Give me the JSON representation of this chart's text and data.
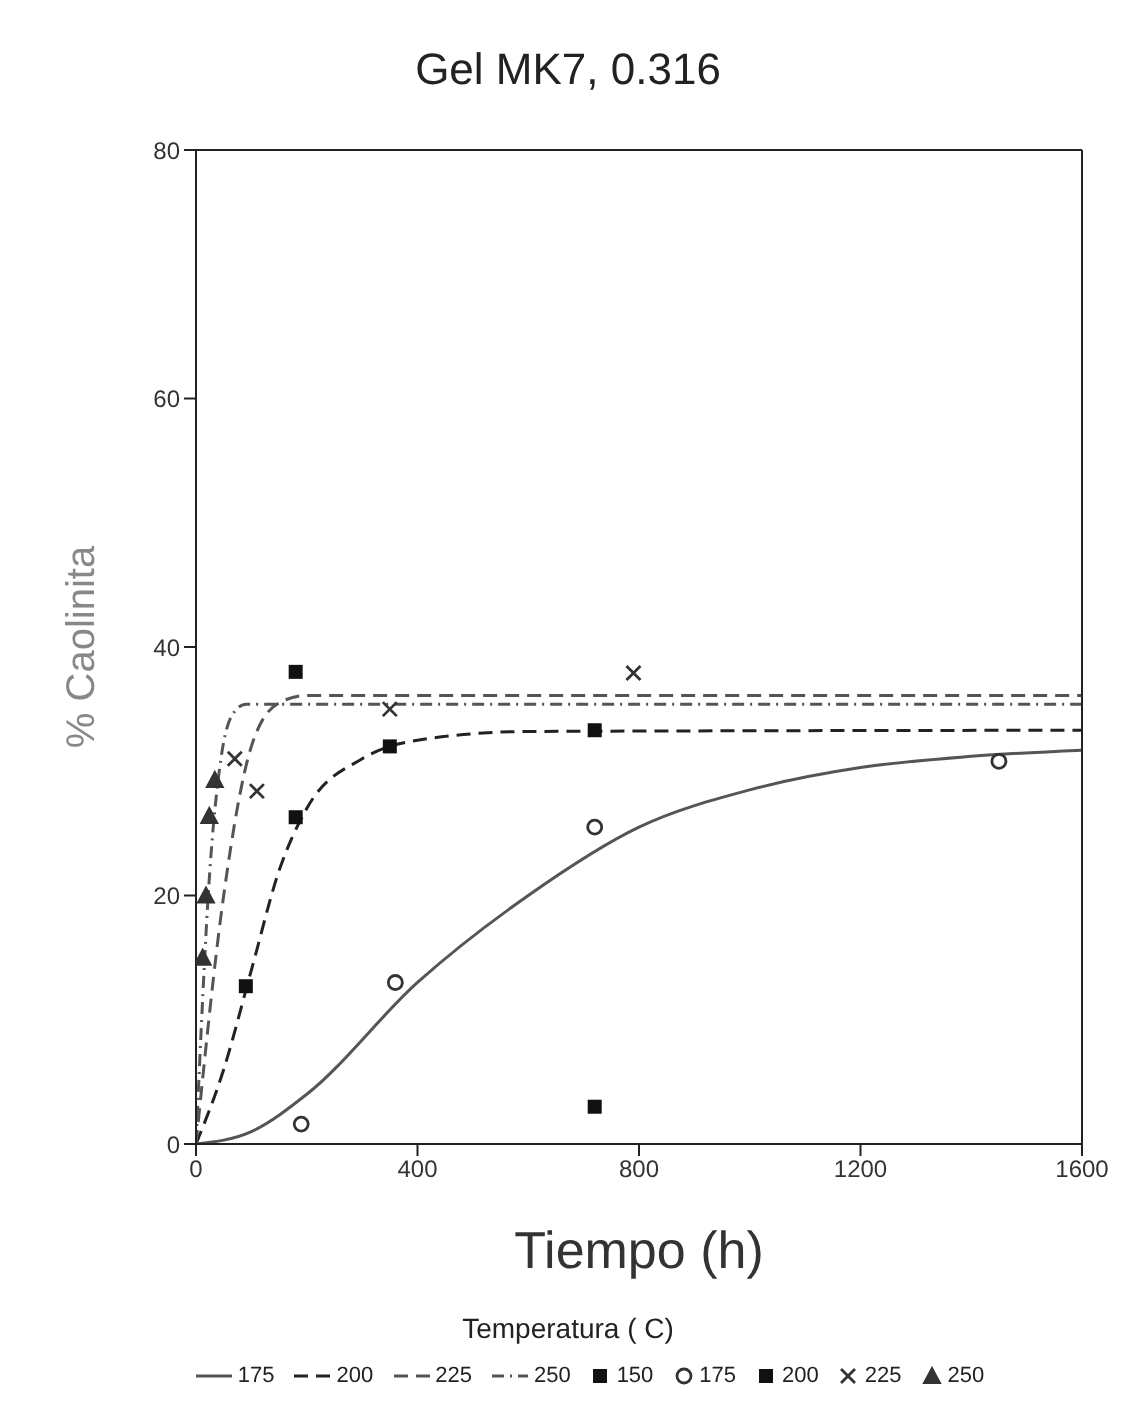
{
  "chart_data": {
    "type": "scatter",
    "title": "Gel MK7, 0.316",
    "xlabel": "Tiempo (h)",
    "ylabel": "% Caolinita",
    "legend_title": "Temperatura ( C)",
    "xlim": [
      0,
      1600
    ],
    "xticks": [
      0,
      400,
      800,
      1200,
      1600
    ],
    "ylim": [
      0,
      80
    ],
    "yticks": [
      0,
      20,
      40,
      60,
      80
    ],
    "grid": false,
    "legend": "bottom",
    "series": [
      {
        "name": "175",
        "type": "line",
        "line_style": "solid",
        "color": "#555555",
        "x": [
          0,
          100,
          200,
          400,
          600,
          800,
          1000,
          1200,
          1400,
          1600
        ],
        "values": [
          0,
          1,
          4,
          13,
          20,
          25.5,
          28.5,
          30.3,
          31.2,
          31.7
        ]
      },
      {
        "name": "200",
        "type": "line",
        "line_style": "dashed",
        "color": "#222222",
        "x": [
          0,
          50,
          100,
          150,
          200,
          300,
          400,
          600,
          1600
        ],
        "values": [
          0,
          6,
          14,
          22,
          27,
          31,
          32.5,
          33.2,
          33.3
        ]
      },
      {
        "name": "225",
        "type": "line",
        "line_style": "dashed",
        "color": "#555555",
        "x": [
          0,
          50,
          100,
          150,
          200,
          1600
        ],
        "values": [
          0,
          20,
          32,
          35.5,
          36.1,
          36.1
        ]
      },
      {
        "name": "250",
        "type": "line",
        "line_style": "dotted",
        "color": "#555555",
        "x": [
          0,
          25,
          45,
          65,
          90,
          1600
        ],
        "values": [
          0,
          22,
          31,
          34.5,
          35.4,
          35.4
        ]
      },
      {
        "name": "150",
        "marker": "square",
        "color": "#111111",
        "x": [
          180,
          720
        ],
        "values": [
          38,
          3
        ]
      },
      {
        "name": "175",
        "marker": "circle",
        "color": "#333333",
        "x": [
          190,
          360,
          720,
          1450
        ],
        "values": [
          1.6,
          13,
          25.5,
          30.8
        ]
      },
      {
        "name": "200",
        "marker": "square",
        "color": "#111111",
        "x": [
          90,
          180,
          350,
          720
        ],
        "values": [
          12.7,
          26.3,
          32,
          33.3
        ]
      },
      {
        "name": "225",
        "marker": "cross",
        "color": "#333333",
        "x": [
          70,
          110,
          350,
          790
        ],
        "values": [
          31,
          28.4,
          35,
          37.9
        ]
      },
      {
        "name": "250",
        "marker": "triangle",
        "color": "#333333",
        "x": [
          12,
          18,
          24,
          34
        ],
        "values": [
          15,
          20,
          26.4,
          29.3
        ]
      }
    ]
  }
}
